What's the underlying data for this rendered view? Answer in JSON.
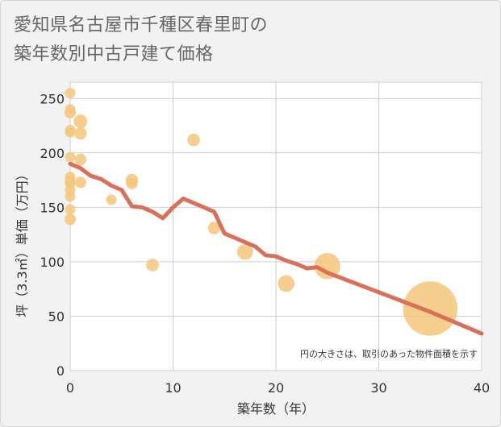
{
  "title_lines": [
    "愛知県名古屋市千種区春里町の",
    "築年数別中古戸建て価格"
  ],
  "chart_data": {
    "type": "scatter",
    "xlabel": "築年数（年）",
    "ylabel": "坪（3.3㎡）単価（万円）",
    "xlim": [
      0,
      40
    ],
    "ylim": [
      0,
      265
    ],
    "xticks": [
      0,
      10,
      20,
      30,
      40
    ],
    "yticks": [
      0,
      50,
      100,
      150,
      200,
      250
    ],
    "grid": true,
    "note": "円の大きさは、取引のあった物件面積を示す",
    "colors": {
      "bubble": "#f5c77e",
      "trend": "#d9705a",
      "grid": "#c8d0d8",
      "background": "#ffffff"
    },
    "points": [
      {
        "x": 0,
        "y": 255,
        "size": 1
      },
      {
        "x": 0,
        "y": 240,
        "size": 1
      },
      {
        "x": 0,
        "y": 237,
        "size": 1.1
      },
      {
        "x": 0,
        "y": 221,
        "size": 1
      },
      {
        "x": 0,
        "y": 219,
        "size": 1
      },
      {
        "x": 0,
        "y": 196,
        "size": 1
      },
      {
        "x": 0,
        "y": 178,
        "size": 1
      },
      {
        "x": 0,
        "y": 174,
        "size": 1
      },
      {
        "x": 0,
        "y": 172,
        "size": 1
      },
      {
        "x": 0,
        "y": 166,
        "size": 1
      },
      {
        "x": 0,
        "y": 160,
        "size": 1
      },
      {
        "x": 0,
        "y": 148,
        "size": 1
      },
      {
        "x": 0,
        "y": 139,
        "size": 1.1
      },
      {
        "x": 1,
        "y": 229,
        "size": 1.3
      },
      {
        "x": 1,
        "y": 218,
        "size": 1.2
      },
      {
        "x": 1,
        "y": 194,
        "size": 1.1
      },
      {
        "x": 1,
        "y": 173,
        "size": 1.1
      },
      {
        "x": 4,
        "y": 157,
        "size": 1
      },
      {
        "x": 6,
        "y": 175,
        "size": 1.2
      },
      {
        "x": 6,
        "y": 172,
        "size": 1.1
      },
      {
        "x": 8,
        "y": 97,
        "size": 1.2
      },
      {
        "x": 12,
        "y": 212,
        "size": 1.2
      },
      {
        "x": 14,
        "y": 131,
        "size": 1.2
      },
      {
        "x": 17,
        "y": 109,
        "size": 1.5
      },
      {
        "x": 21,
        "y": 80,
        "size": 1.6
      },
      {
        "x": 25,
        "y": 96,
        "size": 2.5
      },
      {
        "x": 35,
        "y": 57,
        "size": 5.2
      }
    ],
    "trend": {
      "x": [
        0,
        1,
        2,
        3,
        4,
        5,
        6,
        7,
        8,
        9,
        10,
        11,
        12,
        13,
        14,
        15,
        16,
        17,
        18,
        19,
        20,
        21,
        22,
        23,
        24,
        25,
        30,
        35,
        40
      ],
      "y": [
        190,
        186,
        179,
        176,
        170,
        166,
        151,
        150,
        146,
        140,
        150,
        158,
        154,
        150,
        146,
        126,
        122,
        118,
        114,
        106,
        105,
        101,
        98,
        94,
        95,
        90,
        72,
        54,
        34
      ]
    }
  }
}
